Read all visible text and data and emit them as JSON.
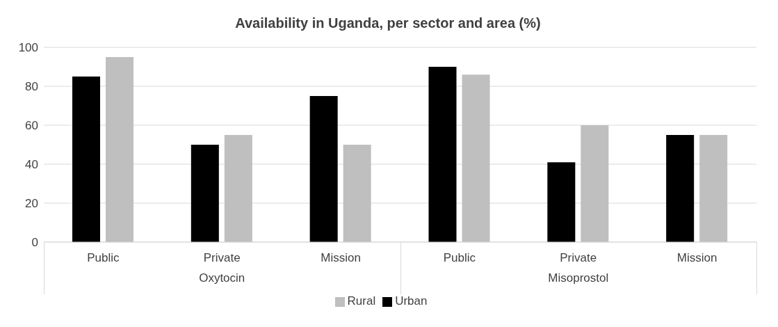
{
  "chart_data": {
    "type": "bar",
    "title": "Availability in Uganda, per sector and area (%)",
    "categories": [
      "Public",
      "Private",
      "Mission",
      "Public",
      "Private",
      "Mission"
    ],
    "series": [
      {
        "name": "Urban",
        "color": "#000000",
        "values": [
          85,
          50,
          75,
          90,
          41,
          55
        ]
      },
      {
        "name": "Rural",
        "color": "#bfbfbf",
        "values": [
          95,
          55,
          50,
          86,
          60,
          55
        ]
      }
    ],
    "annotations": [
      "Oxytocin",
      "Misoprostol"
    ],
    "ylim": [
      0,
      100
    ],
    "yticks": [
      0,
      20,
      40,
      60,
      80,
      100
    ],
    "grid": "y",
    "legend": "bottom"
  }
}
